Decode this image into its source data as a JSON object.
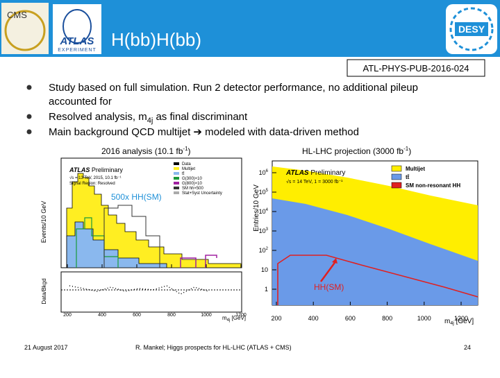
{
  "header": {
    "title": "H(bb)H(bb)",
    "logos": [
      "CMS",
      "ATLAS",
      "EXPERIMENT",
      "DESY"
    ]
  },
  "reference": "ATL-PHYS-PUB-2016-024",
  "bullets": [
    {
      "lines": [
        "Study based on full simulation. Run 2 detector performance, no additional pileup",
        "accounted for"
      ]
    },
    {
      "parts": [
        "Resolved analysis, m",
        "4j",
        " as final discriminant"
      ]
    },
    {
      "parts": [
        "Main background QCD multijet ➔ modeled with data-driven method"
      ]
    }
  ],
  "plots": [
    {
      "caption": [
        "2016 analysis (10.1 fb",
        "-1",
        ")"
      ],
      "ylabel": "Events/10 GeV",
      "ratio_ylabel": "Data/Bkgd",
      "xlabel": [
        "m",
        "4j",
        " [GeV]"
      ],
      "atlas": "ATLAS",
      "prelim": "Preliminary",
      "info": [
        "√s = 13 TeV, 2015, 10.1 fb⁻¹",
        "Signal Region: Resolved"
      ],
      "legend": [
        "Data",
        "Multijet",
        "tt̄",
        "G(300)×10",
        "G(800)×10",
        "SM hh×500",
        "Stat+Syst Uncertainty"
      ],
      "annotation": "500x HH(SM)",
      "xticks": [
        "200",
        "400",
        "600",
        "800",
        "1000",
        "1200"
      ]
    },
    {
      "caption": [
        "HL-LHC projection (3000 fb",
        "-1",
        ")"
      ],
      "ylabel": "Entries/10 GeV",
      "xlabel": [
        "m",
        "4j",
        " [GeV]"
      ],
      "atlas": "ATLAS",
      "prelim": "Preliminary",
      "info": [
        "√s = 14 TeV, 1 = 3000 fb⁻¹"
      ],
      "legend": [
        "Multijet",
        "tt̄",
        "SM non-resonant HH"
      ],
      "annotation": "HH(SM)",
      "yticks": [
        [
          "1",
          ""
        ],
        [
          "10",
          ""
        ],
        [
          "10",
          "2"
        ],
        [
          "10",
          "3"
        ],
        [
          "10",
          "4"
        ],
        [
          "10",
          "5"
        ],
        [
          "10",
          "6"
        ]
      ],
      "xticks": [
        "200",
        "400",
        "600",
        "800",
        "1000",
        "1200"
      ]
    }
  ],
  "footer": {
    "date": "21 August 2017",
    "center": "R. Mankel; Higgs prospects for HL-LHC (ATLAS + CMS)",
    "page": "24"
  }
}
